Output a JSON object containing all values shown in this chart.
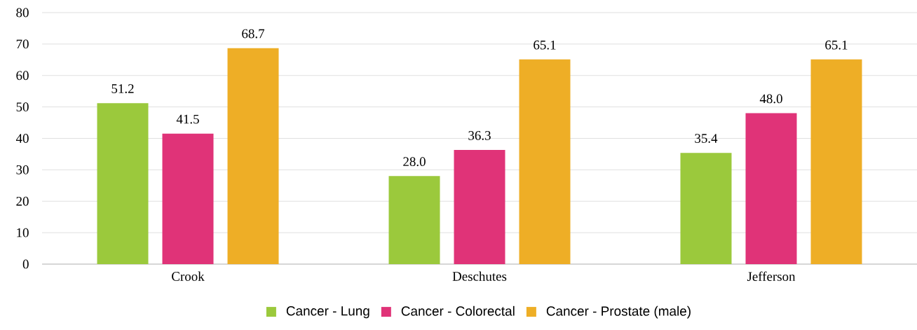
{
  "chart_data": {
    "type": "bar",
    "categories": [
      "Crook",
      "Deschutes",
      "Jefferson"
    ],
    "series": [
      {
        "name": "Cancer - Lung",
        "color": "#9bc93c",
        "values": [
          51.2,
          28.0,
          35.4
        ],
        "value_labels": [
          "51.2",
          "28.0",
          "35.4"
        ]
      },
      {
        "name": "Cancer - Colorectal",
        "color": "#e03378",
        "values": [
          41.5,
          36.3,
          48.0
        ],
        "value_labels": [
          "41.5",
          "36.3",
          "48.0"
        ]
      },
      {
        "name": "Cancer - Prostate (male)",
        "color": "#eeae26",
        "values": [
          68.7,
          65.1,
          65.1
        ],
        "value_labels": [
          "68.7",
          "65.1",
          "65.1"
        ]
      }
    ],
    "ylim": [
      0,
      80
    ],
    "yticks": [
      0,
      10,
      20,
      30,
      40,
      50,
      60,
      70,
      80
    ],
    "grid": "y",
    "legend": "bottom"
  }
}
